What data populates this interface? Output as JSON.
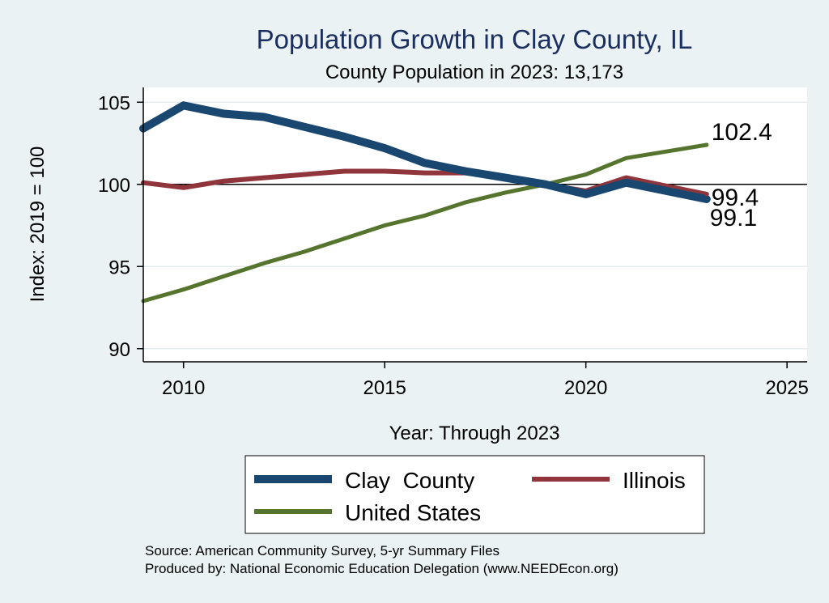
{
  "chart_data": {
    "type": "line",
    "title": "Population Growth in Clay County, IL",
    "subtitle": "County Population in 2023: 13,173",
    "xlabel": "Year: Through 2023",
    "ylabel": "Index: 2019 = 100",
    "xlim": [
      2009,
      2025.5
    ],
    "ylim": [
      89.2,
      105.9
    ],
    "xticks": [
      2010,
      2015,
      2020,
      2025
    ],
    "yticks": [
      90,
      95,
      100,
      105
    ],
    "reference_line": 100,
    "grid": true,
    "legend_position": "bottom",
    "x": [
      2009,
      2010,
      2011,
      2012,
      2013,
      2014,
      2015,
      2016,
      2017,
      2018,
      2019,
      2020,
      2021,
      2022,
      2023
    ],
    "series": [
      {
        "name": "Clay  County",
        "color": "#1a476f",
        "values": [
          103.4,
          104.8,
          104.3,
          104.1,
          103.5,
          102.9,
          102.2,
          101.3,
          100.8,
          100.4,
          100.0,
          99.4,
          100.1,
          99.6,
          99.1
        ],
        "end_label": "99.1"
      },
      {
        "name": "Illinois",
        "color": "#90353b",
        "values": [
          100.1,
          99.8,
          100.2,
          100.4,
          100.6,
          100.8,
          100.8,
          100.7,
          100.7,
          100.4,
          100.0,
          99.6,
          100.4,
          99.9,
          99.4
        ],
        "end_label": "99.4"
      },
      {
        "name": "United States",
        "color": "#55752f",
        "values": [
          92.9,
          93.6,
          94.4,
          95.2,
          95.9,
          96.7,
          97.5,
          98.1,
          98.9,
          99.5,
          100.0,
          100.6,
          101.6,
          102.0,
          102.4
        ],
        "end_label": "102.4"
      }
    ]
  },
  "notes": {
    "source": "Source: American Community Survey, 5-yr Summary Files",
    "produced": "Produced by: National Economic Education Delegation (www.NEEDEcon.org)"
  }
}
